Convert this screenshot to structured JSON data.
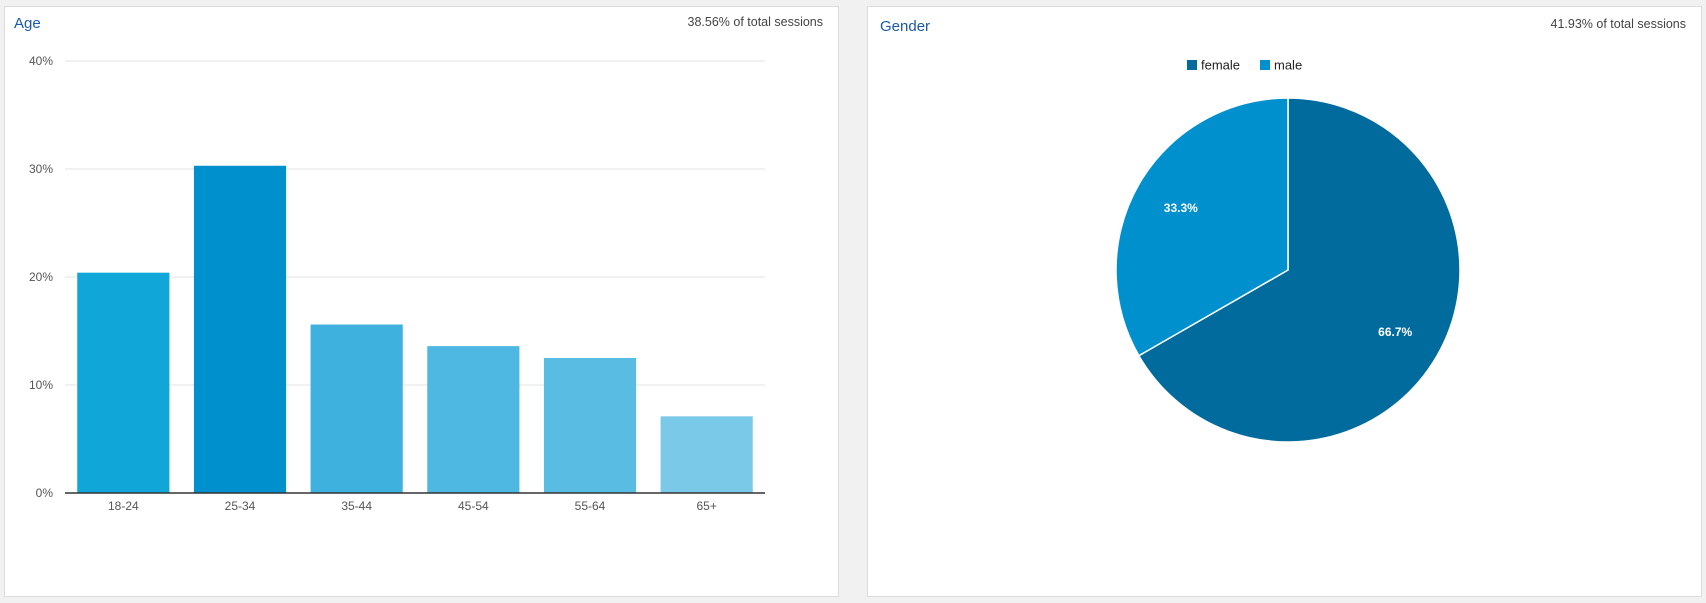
{
  "age_panel": {
    "title": "Age",
    "note": "38.56% of total sessions"
  },
  "gender_panel": {
    "title": "Gender",
    "note": "41.93% of total sessions"
  },
  "chart_data": [
    {
      "type": "bar",
      "title": "Age",
      "categories": [
        "18-24",
        "25-34",
        "35-44",
        "45-54",
        "55-64",
        "65+"
      ],
      "values": [
        20.4,
        30.3,
        15.6,
        13.6,
        12.5,
        7.1
      ],
      "ylim": [
        0,
        40
      ],
      "yticks": [
        "0%",
        "10%",
        "20%",
        "30%",
        "40%"
      ],
      "grid": true,
      "colors": [
        "#10a7d8",
        "#0090cd",
        "#3fb1de",
        "#4fb8e2",
        "#58bce3",
        "#7bc9e9"
      ]
    },
    {
      "type": "pie",
      "title": "Gender",
      "legend_position": "top",
      "slices": [
        {
          "label": "female",
          "value": 66.7,
          "display": "66.7%",
          "color": "#006b9c"
        },
        {
          "label": "male",
          "value": 33.3,
          "display": "33.3%",
          "color": "#0090cd"
        }
      ]
    }
  ]
}
